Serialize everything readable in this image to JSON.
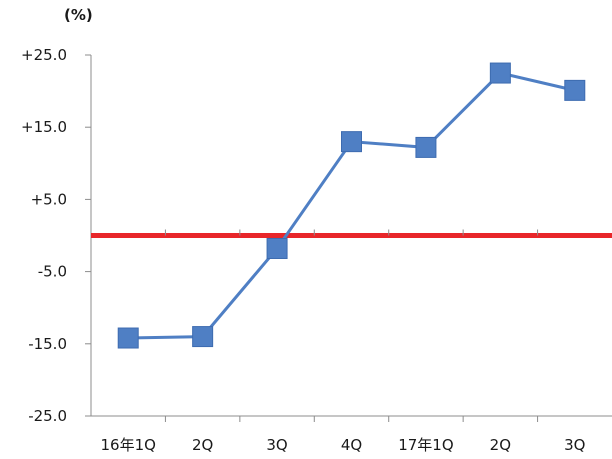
{
  "chart_data": {
    "type": "line",
    "ylabel": "(%)",
    "categories": [
      "16年1Q",
      "2Q",
      "3Q",
      "4Q",
      "17年1Q",
      "2Q",
      "3Q"
    ],
    "series": [
      {
        "values": [
          -14.2,
          -14.0,
          -1.8,
          13.0,
          12.2,
          22.5,
          20.1
        ]
      }
    ],
    "ylim": [
      -25,
      25
    ],
    "yticks": [
      "+25.0",
      "+15.0",
      "+5.0",
      "-5.0",
      "-15.0",
      "-25.0"
    ],
    "ytick_values": [
      25,
      15,
      5,
      -5,
      -15,
      -25
    ],
    "reference_line": {
      "value": 0,
      "color": "#e8262a"
    },
    "series_color": "#4f7fc4",
    "grid": false
  }
}
